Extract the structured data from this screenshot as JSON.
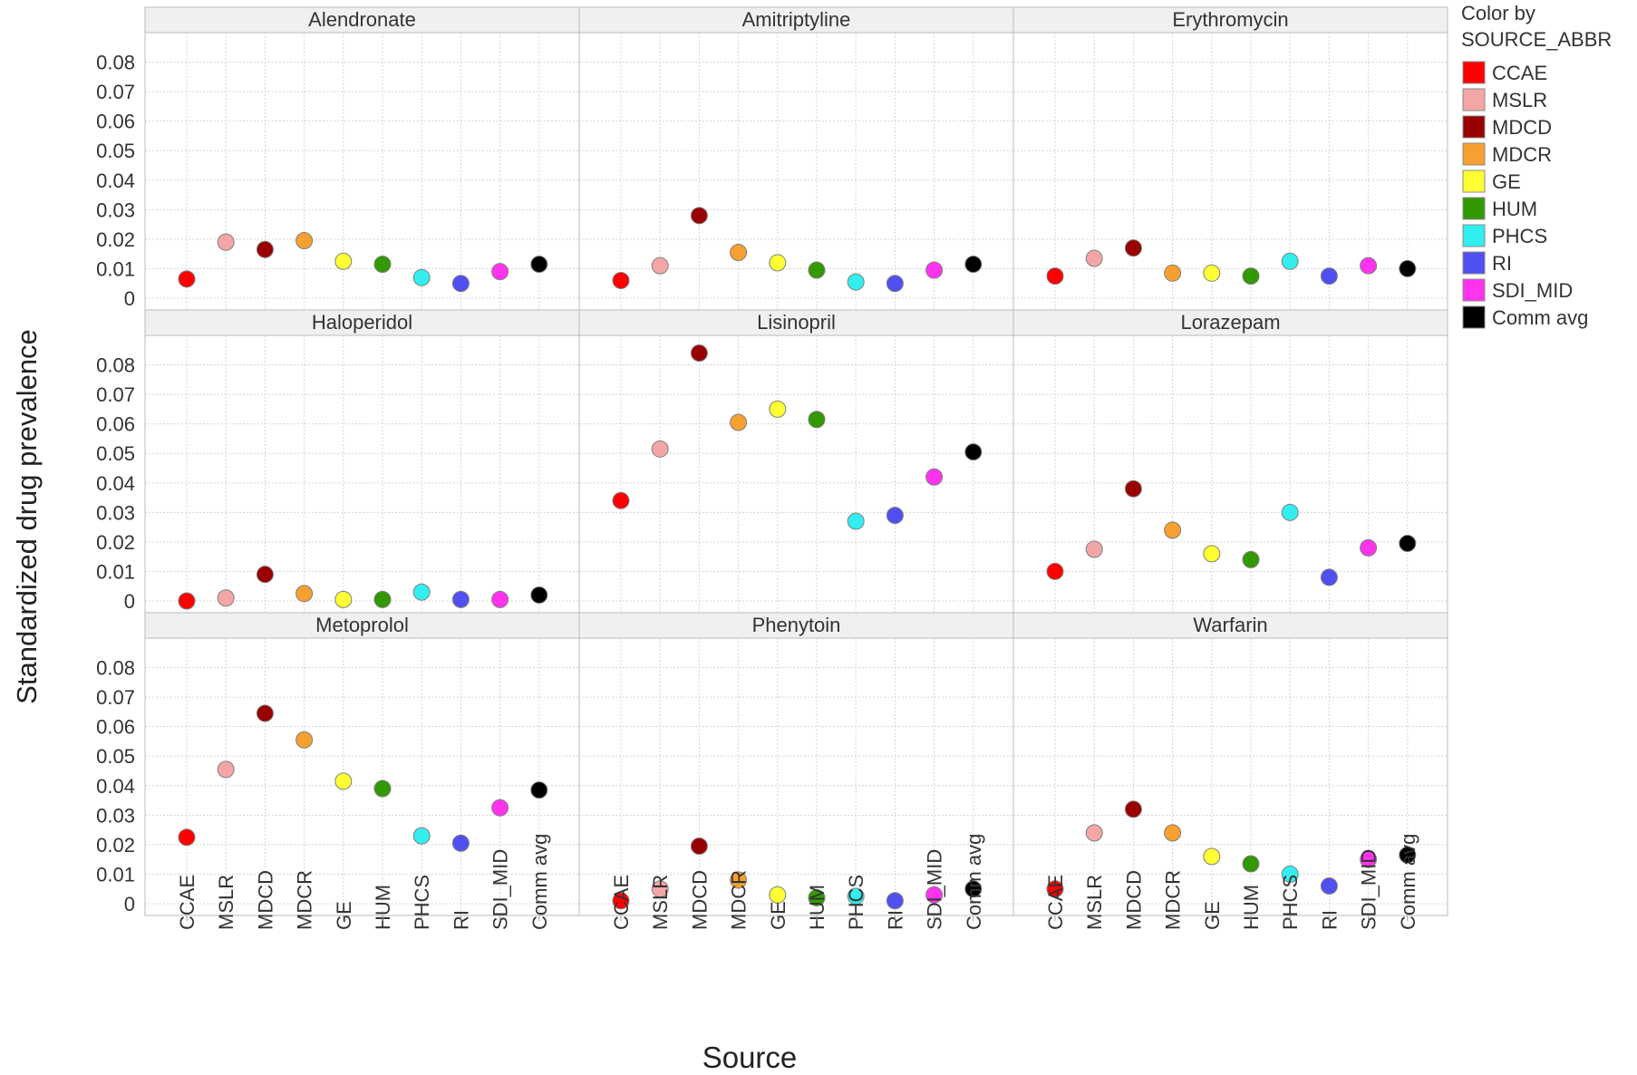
{
  "chart_data": {
    "type": "scatter",
    "ylabel": "Standardized drug prevalence",
    "xlabel": "Source",
    "categories": [
      "CCAE",
      "MSLR",
      "MDCD",
      "MDCR",
      "GE",
      "HUM",
      "PHCS",
      "RI",
      "SDI_MID",
      "Comm avg"
    ],
    "ylim": [
      -0.004,
      0.09
    ],
    "yticks": [
      "0",
      "0.01",
      "0.02",
      "0.03",
      "0.04",
      "0.05",
      "0.06",
      "0.07",
      "0.08"
    ],
    "grid": true,
    "legend": {
      "title_line1": "Color by",
      "title_line2": "SOURCE_ABBR",
      "placement": "right",
      "entries": [
        {
          "label": "CCAE",
          "color": "#ff0000"
        },
        {
          "label": "MSLR",
          "color": "#f4a6a6"
        },
        {
          "label": "MDCD",
          "color": "#990000"
        },
        {
          "label": "MDCR",
          "color": "#f5a030"
        },
        {
          "label": "GE",
          "color": "#ffff33"
        },
        {
          "label": "HUM",
          "color": "#339900"
        },
        {
          "label": "PHCS",
          "color": "#33eeee"
        },
        {
          "label": "RI",
          "color": "#5050f0"
        },
        {
          "label": "SDI_MID",
          "color": "#ff33ee"
        },
        {
          "label": "Comm avg",
          "color": "#000000"
        }
      ]
    },
    "panels": [
      {
        "title": "Alendronate",
        "values": [
          0.0065,
          0.019,
          0.0165,
          0.0195,
          0.0125,
          0.0115,
          0.007,
          0.005,
          0.009,
          0.0115
        ]
      },
      {
        "title": "Amitriptyline",
        "values": [
          0.006,
          0.011,
          0.028,
          0.0155,
          0.012,
          0.0095,
          0.0055,
          0.005,
          0.0095,
          0.0115
        ]
      },
      {
        "title": "Erythromycin",
        "values": [
          0.0075,
          0.0135,
          0.017,
          0.0085,
          0.0085,
          0.0075,
          0.0125,
          0.0075,
          0.011,
          0.01
        ]
      },
      {
        "title": "Haloperidol",
        "values": [
          0.0,
          0.001,
          0.009,
          0.0025,
          0.0005,
          0.0005,
          0.003,
          0.0005,
          0.0005,
          0.002
        ]
      },
      {
        "title": "Lisinopril",
        "values": [
          0.034,
          0.0515,
          0.084,
          0.0605,
          0.065,
          0.0615,
          0.027,
          0.029,
          0.042,
          0.0505
        ]
      },
      {
        "title": "Lorazepam",
        "values": [
          0.01,
          0.0175,
          0.038,
          0.024,
          0.016,
          0.014,
          0.03,
          0.008,
          0.018,
          0.0195
        ]
      },
      {
        "title": "Metoprolol",
        "values": [
          0.0225,
          0.0455,
          0.0645,
          0.0555,
          0.0415,
          0.039,
          0.023,
          0.0205,
          0.0325,
          0.0385
        ]
      },
      {
        "title": "Phenytoin",
        "values": [
          0.001,
          0.005,
          0.0195,
          0.008,
          0.003,
          0.002,
          0.0025,
          0.001,
          0.003,
          0.005
        ]
      },
      {
        "title": "Warfarin",
        "values": [
          0.005,
          0.024,
          0.032,
          0.024,
          0.016,
          0.0135,
          0.01,
          0.006,
          0.015,
          0.0165
        ]
      }
    ]
  }
}
